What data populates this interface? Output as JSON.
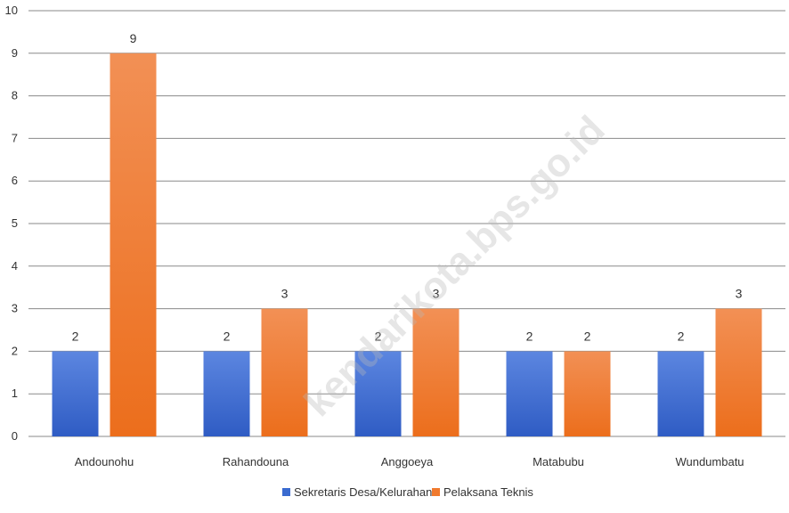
{
  "chart_data": {
    "type": "bar",
    "title": "",
    "xlabel": "",
    "ylabel": "",
    "ylim": [
      0,
      10
    ],
    "yticks": [
      0,
      1,
      2,
      3,
      4,
      5,
      6,
      7,
      8,
      9,
      10
    ],
    "categories": [
      "Andounohu",
      "Rahandouna",
      "Anggoeya",
      "Matabubu",
      "Wundumbatu"
    ],
    "series": [
      {
        "name": "Sekretaris Desa/Kelurahan",
        "values": [
          2,
          2,
          2,
          2,
          2
        ],
        "color": "#3a6bd0"
      },
      {
        "name": "Pelaksana Teknis",
        "values": [
          9,
          3,
          3,
          2,
          3
        ],
        "color": "#f07a2e"
      }
    ],
    "grid": true,
    "legend_position": "bottom",
    "data_labels": true
  },
  "watermark": "kendarikota.bps.go.id"
}
